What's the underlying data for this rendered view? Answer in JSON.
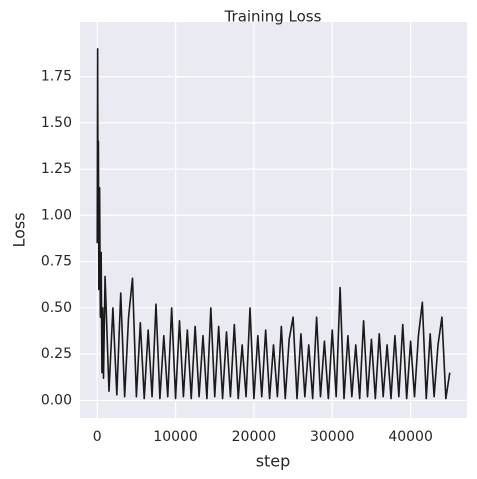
{
  "chart_data": {
    "type": "line",
    "title": "Training Loss",
    "xlabel": "step",
    "ylabel": "Loss",
    "x": [
      0,
      50,
      100,
      150,
      200,
      300,
      400,
      500,
      600,
      700,
      800,
      1000,
      1500,
      2000,
      2500,
      3000,
      3500,
      4000,
      4500,
      5000,
      5500,
      6000,
      6500,
      7000,
      7500,
      8000,
      8500,
      9000,
      9500,
      10000,
      10500,
      11000,
      11500,
      12000,
      12500,
      13000,
      13500,
      14000,
      14500,
      15000,
      15500,
      16000,
      16500,
      17000,
      17500,
      18000,
      18500,
      19000,
      19500,
      20000,
      20500,
      21000,
      21500,
      22000,
      22500,
      23000,
      23500,
      24000,
      24500,
      25000,
      25500,
      26000,
      26500,
      27000,
      27500,
      28000,
      28500,
      29000,
      29500,
      30000,
      30500,
      31000,
      31500,
      32000,
      32500,
      33000,
      33500,
      34000,
      34500,
      35000,
      35500,
      36000,
      36500,
      37000,
      37500,
      38000,
      38500,
      39000,
      39500,
      40000,
      40500,
      41000,
      41500,
      42000,
      42500,
      43000,
      43500,
      44000,
      44500,
      45000
    ],
    "values": [
      0.85,
      1.9,
      1.0,
      1.4,
      0.6,
      1.15,
      0.45,
      0.8,
      0.15,
      0.5,
      0.12,
      0.67,
      0.05,
      0.5,
      0.03,
      0.58,
      0.02,
      0.45,
      0.66,
      0.02,
      0.42,
      0.01,
      0.38,
      0.02,
      0.52,
      0.01,
      0.35,
      0.02,
      0.5,
      0.01,
      0.43,
      0.02,
      0.38,
      0.01,
      0.4,
      0.02,
      0.35,
      0.01,
      0.5,
      0.02,
      0.4,
      0.01,
      0.37,
      0.02,
      0.41,
      0.01,
      0.3,
      0.02,
      0.5,
      0.01,
      0.35,
      0.02,
      0.38,
      0.01,
      0.3,
      0.02,
      0.4,
      0.01,
      0.33,
      0.45,
      0.01,
      0.36,
      0.02,
      0.3,
      0.01,
      0.45,
      0.02,
      0.32,
      0.01,
      0.38,
      0.02,
      0.61,
      0.01,
      0.35,
      0.02,
      0.3,
      0.01,
      0.43,
      0.02,
      0.33,
      0.01,
      0.36,
      0.02,
      0.3,
      0.01,
      0.35,
      0.02,
      0.41,
      0.01,
      0.32,
      0.02,
      0.35,
      0.53,
      0.01,
      0.36,
      0.02,
      0.3,
      0.45,
      0.01,
      0.15
    ],
    "color": "#1a1a1a",
    "xlim": [
      -2200,
      47200
    ],
    "ylim": [
      -0.095,
      2.045
    ],
    "xticks": [
      0,
      10000,
      20000,
      30000,
      40000
    ],
    "yticks": [
      {
        "value": 0,
        "label": "0.00"
      },
      {
        "value": 0.25,
        "label": "0.25"
      },
      {
        "value": 0.5,
        "label": "0.50"
      },
      {
        "value": 0.75,
        "label": "0.75"
      },
      {
        "value": 1,
        "label": "1.00"
      },
      {
        "value": 1.25,
        "label": "1.25"
      },
      {
        "value": 1.5,
        "label": "1.50"
      },
      {
        "value": 1.75,
        "label": "1.75"
      }
    ],
    "grid": true
  }
}
